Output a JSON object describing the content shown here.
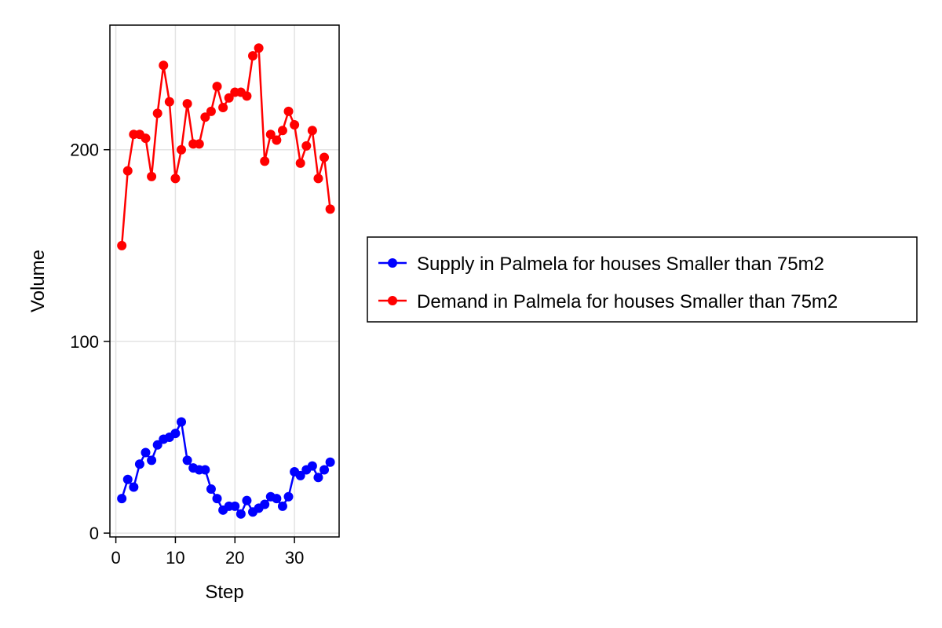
{
  "chart_data": {
    "type": "line",
    "xlabel": "Step",
    "ylabel": "Volume",
    "xlim": [
      -1,
      37.5
    ],
    "ylim": [
      -2,
      265
    ],
    "xticks": [
      0,
      10,
      20,
      30
    ],
    "yticks": [
      0,
      100,
      200
    ],
    "grid": true,
    "legend_position": "right",
    "x": [
      1,
      2,
      3,
      4,
      5,
      6,
      7,
      8,
      9,
      10,
      11,
      12,
      13,
      14,
      15,
      16,
      17,
      18,
      19,
      20,
      21,
      22,
      23,
      24,
      25,
      26,
      27,
      28,
      29,
      30,
      31,
      32,
      33,
      34,
      35,
      36
    ],
    "series": [
      {
        "name": "Supply in Palmela for houses Smaller than 75m2",
        "color": "#0000ff",
        "values": [
          18,
          28,
          24,
          36,
          42,
          38,
          46,
          49,
          50,
          52,
          58,
          38,
          34,
          33,
          33,
          23,
          18,
          12,
          14,
          14,
          10,
          17,
          11,
          13,
          15,
          19,
          18,
          14,
          19,
          32,
          30,
          33,
          35,
          29,
          33,
          37
        ]
      },
      {
        "name": "Demand in Palmela for houses Smaller than 75m2",
        "color": "#ff0000",
        "values": [
          150,
          189,
          208,
          208,
          206,
          186,
          219,
          244,
          225,
          185,
          200,
          224,
          203,
          203,
          217,
          220,
          233,
          222,
          227,
          230,
          230,
          228,
          249,
          253,
          194,
          208,
          205,
          210,
          220,
          213,
          193,
          202,
          210,
          185,
          196,
          169
        ]
      }
    ]
  }
}
